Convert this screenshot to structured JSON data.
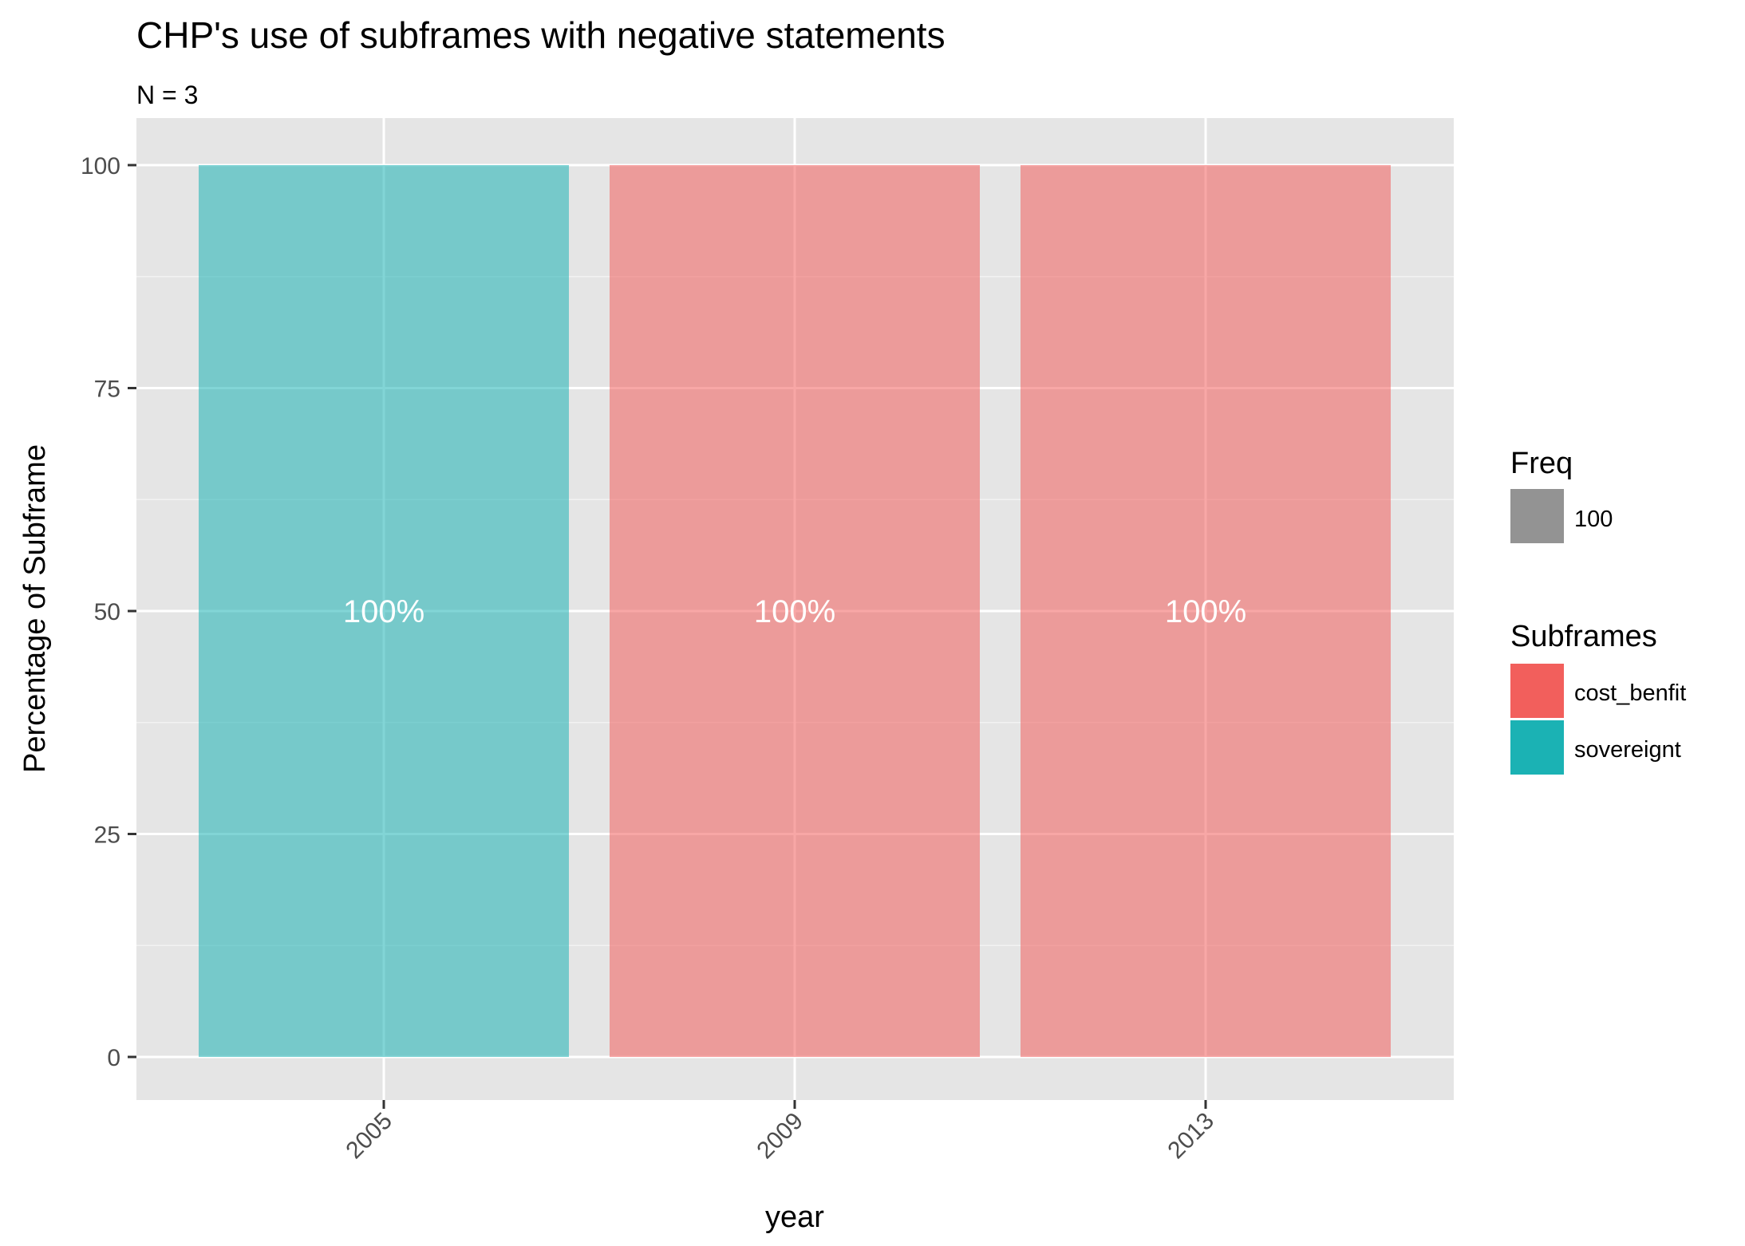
{
  "chart_data": {
    "type": "bar",
    "title": "CHP's use of subframes with negative statements",
    "subtitle": "N = 3",
    "xlabel": "year",
    "ylabel": "Percentage of Subframe",
    "categories": [
      "2005",
      "2009",
      "2013"
    ],
    "values": [
      100,
      100,
      100
    ],
    "bar_subframes": [
      "sovereignt",
      "cost_benfit",
      "cost_benfit"
    ],
    "bar_labels": [
      "100%",
      "100%",
      "100%"
    ],
    "ylim": [
      0,
      100
    ],
    "yticks": [
      0,
      25,
      50,
      75,
      100
    ],
    "ytick_labels": [
      "0",
      "25",
      "50",
      "75",
      "100"
    ],
    "grid": true,
    "legend_position": "right",
    "legends": {
      "freq": {
        "title": "Freq",
        "entries": [
          {
            "label": "100",
            "color": "#939393"
          }
        ]
      },
      "subframes": {
        "title": "Subframes",
        "entries": [
          {
            "label": "cost_benfit",
            "color": "#F25F5C"
          },
          {
            "label": "sovereignt",
            "color": "#1BB2B4"
          }
        ]
      }
    },
    "colors": {
      "sovereignt": "#1BB2B4",
      "cost_benfit": "#F25F5C",
      "panel": "#E5E5E5",
      "grid": "#FFFFFF"
    }
  }
}
